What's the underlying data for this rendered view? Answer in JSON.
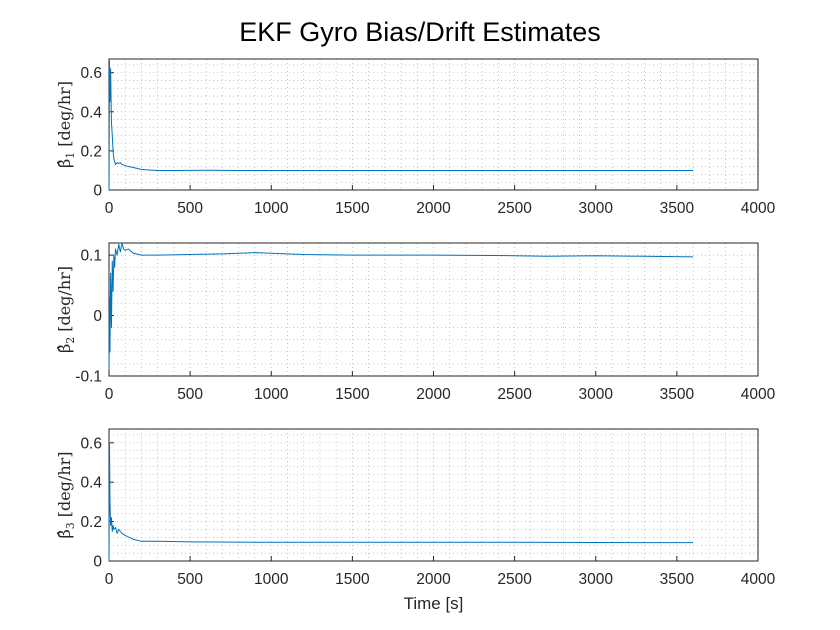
{
  "figure": {
    "title": "EKF Gyro Bias/Drift Estimates"
  },
  "colors": {
    "series": "#0072BD",
    "axes": "#262626",
    "grid": "#b0b0b0",
    "background": "#ffffff"
  },
  "chart_data": [
    {
      "type": "line",
      "ylabel_base": "β̂",
      "ylabel_sub": "1",
      "ylabel_unit": "[deg/hr]",
      "xlabel": "",
      "xlim": [
        0,
        4000
      ],
      "ylim": [
        0,
        0.67
      ],
      "xticks": [
        0,
        500,
        1000,
        1500,
        2000,
        2500,
        3000,
        3500,
        4000
      ],
      "yticks": [
        0,
        0.2,
        0.4,
        0.6
      ],
      "ytick_labels": [
        "0",
        "0.2",
        "0.4",
        "0.6"
      ],
      "grid": "minor-dotted",
      "series": [
        {
          "x": [
            0,
            3,
            6,
            10,
            15,
            20,
            25,
            30,
            40,
            50,
            60,
            70,
            80,
            100,
            120,
            150,
            200,
            300,
            400,
            600,
            800,
            1000,
            1500,
            2000,
            2500,
            3000,
            3500,
            3600
          ],
          "y": [
            0.0,
            0.66,
            0.45,
            0.62,
            0.35,
            0.28,
            0.2,
            0.16,
            0.13,
            0.14,
            0.135,
            0.14,
            0.13,
            0.125,
            0.12,
            0.115,
            0.105,
            0.1,
            0.1,
            0.101,
            0.1,
            0.1,
            0.1,
            0.1,
            0.1,
            0.1,
            0.1,
            0.1
          ]
        }
      ]
    },
    {
      "type": "line",
      "ylabel_base": "β̂",
      "ylabel_sub": "2",
      "ylabel_unit": "[deg/hr]",
      "xlabel": "",
      "xlim": [
        0,
        4000
      ],
      "ylim": [
        -0.1,
        0.12
      ],
      "xticks": [
        0,
        500,
        1000,
        1500,
        2000,
        2500,
        3000,
        3500,
        4000
      ],
      "yticks": [
        -0.1,
        0,
        0.1
      ],
      "ytick_labels": [
        "-0.1",
        "0",
        "0.1"
      ],
      "grid": "minor-dotted",
      "series": [
        {
          "x": [
            0,
            3,
            6,
            10,
            15,
            20,
            25,
            30,
            35,
            40,
            50,
            60,
            70,
            80,
            90,
            100,
            120,
            150,
            200,
            300,
            500,
            700,
            900,
            1000,
            1200,
            1500,
            2000,
            2500,
            2700,
            3000,
            3300,
            3600
          ],
          "y": [
            -0.09,
            0.03,
            -0.06,
            0.07,
            -0.02,
            0.09,
            0.04,
            0.1,
            0.08,
            0.11,
            0.1,
            0.118,
            0.105,
            0.12,
            0.11,
            0.108,
            0.11,
            0.103,
            0.1,
            0.1,
            0.101,
            0.102,
            0.104,
            0.103,
            0.101,
            0.1,
            0.1,
            0.099,
            0.098,
            0.099,
            0.098,
            0.097
          ]
        }
      ]
    },
    {
      "type": "line",
      "ylabel_base": "β̂",
      "ylabel_sub": "3",
      "ylabel_unit": "[deg/hr]",
      "xlabel": "Time [s]",
      "xlim": [
        0,
        4000
      ],
      "ylim": [
        0,
        0.67
      ],
      "xticks": [
        0,
        500,
        1000,
        1500,
        2000,
        2500,
        3000,
        3500,
        4000
      ],
      "yticks": [
        0,
        0.2,
        0.4,
        0.6
      ],
      "ytick_labels": [
        "0",
        "0.2",
        "0.4",
        "0.6"
      ],
      "grid": "minor-dotted",
      "series": [
        {
          "x": [
            0,
            3,
            6,
            10,
            15,
            20,
            25,
            30,
            40,
            50,
            60,
            80,
            100,
            150,
            200,
            300,
            500,
            1000,
            1500,
            2000,
            2500,
            3000,
            3500,
            3600
          ],
          "y": [
            0.0,
            0.6,
            0.3,
            0.18,
            0.22,
            0.15,
            0.18,
            0.16,
            0.17,
            0.14,
            0.16,
            0.14,
            0.13,
            0.11,
            0.1,
            0.1,
            0.097,
            0.095,
            0.095,
            0.095,
            0.095,
            0.094,
            0.093,
            0.093
          ]
        }
      ]
    }
  ]
}
